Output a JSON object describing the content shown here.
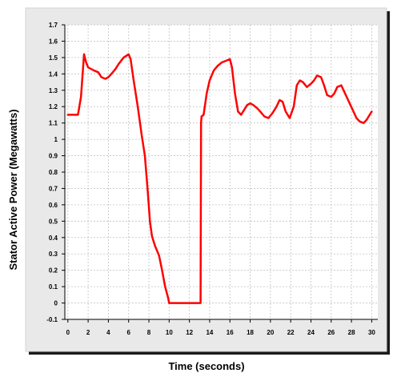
{
  "chart_data": {
    "type": "line",
    "title": "",
    "xlabel": "Time (seconds)",
    "ylabel": "Stator Active Power (Megawatts)",
    "xlim": [
      -0.3,
      30.6
    ],
    "ylim": [
      -0.1,
      1.7
    ],
    "xticks": [
      0,
      2,
      4,
      6,
      8,
      10,
      12,
      14,
      16,
      18,
      20,
      22,
      24,
      26,
      28,
      30
    ],
    "yticks": [
      -0.1,
      0,
      0.1,
      0.2,
      0.3,
      0.4,
      0.5,
      0.6,
      0.7,
      0.8,
      0.9,
      1,
      1.1,
      1.2,
      1.3,
      1.4,
      1.5,
      1.6,
      1.7
    ],
    "grid": true,
    "legend": "none",
    "colors": {
      "line": "#ff0000",
      "grid": "#c0c0c0",
      "frame_fill": "#e9e9e9",
      "frame_border": "#d4d4d4",
      "shadow": "#1a1a1a"
    },
    "series": [
      {
        "x": [
          0,
          0.5,
          1.0,
          1.3,
          1.6,
          1.8,
          2.0,
          2.3,
          2.6,
          3.0,
          3.3,
          3.7,
          4.0,
          4.3,
          4.7,
          5.0,
          5.5,
          6.0,
          6.2,
          6.5,
          6.9,
          7.3,
          7.6,
          7.9,
          8.1,
          8.3,
          8.6,
          9.0,
          9.3,
          9.6,
          9.9,
          10.0,
          10.5,
          11.0,
          12.0,
          13.1,
          13.15,
          13.2,
          13.4,
          13.7,
          14.0,
          14.4,
          14.8,
          15.2,
          15.6,
          16.0,
          16.2,
          16.5,
          16.8,
          17.1,
          17.4,
          17.7,
          18.0,
          18.3,
          18.7,
          19.0,
          19.4,
          19.8,
          20.2,
          20.6,
          20.9,
          21.2,
          21.5,
          21.9,
          22.3,
          22.6,
          22.9,
          23.2,
          23.6,
          24.0,
          24.3,
          24.6,
          25.0,
          25.3,
          25.6,
          26.0,
          26.3,
          26.6,
          27.0,
          27.3,
          27.6,
          27.9,
          28.2,
          28.5,
          28.8,
          29.2,
          29.5,
          29.8,
          30.0
        ],
        "y": [
          1.15,
          1.15,
          1.15,
          1.26,
          1.52,
          1.47,
          1.44,
          1.43,
          1.42,
          1.41,
          1.38,
          1.37,
          1.38,
          1.4,
          1.43,
          1.46,
          1.5,
          1.52,
          1.49,
          1.36,
          1.2,
          1.02,
          0.9,
          0.67,
          0.5,
          0.41,
          0.35,
          0.29,
          0.2,
          0.1,
          0.03,
          0.0,
          0.0,
          0.0,
          0.0,
          0.0,
          1.1,
          1.14,
          1.15,
          1.28,
          1.36,
          1.42,
          1.45,
          1.47,
          1.48,
          1.49,
          1.44,
          1.28,
          1.17,
          1.15,
          1.18,
          1.21,
          1.22,
          1.21,
          1.19,
          1.17,
          1.14,
          1.13,
          1.16,
          1.2,
          1.24,
          1.23,
          1.17,
          1.13,
          1.2,
          1.33,
          1.36,
          1.35,
          1.32,
          1.34,
          1.36,
          1.39,
          1.38,
          1.33,
          1.27,
          1.26,
          1.28,
          1.32,
          1.33,
          1.29,
          1.25,
          1.21,
          1.17,
          1.13,
          1.11,
          1.1,
          1.12,
          1.15,
          1.17
        ]
      }
    ]
  }
}
